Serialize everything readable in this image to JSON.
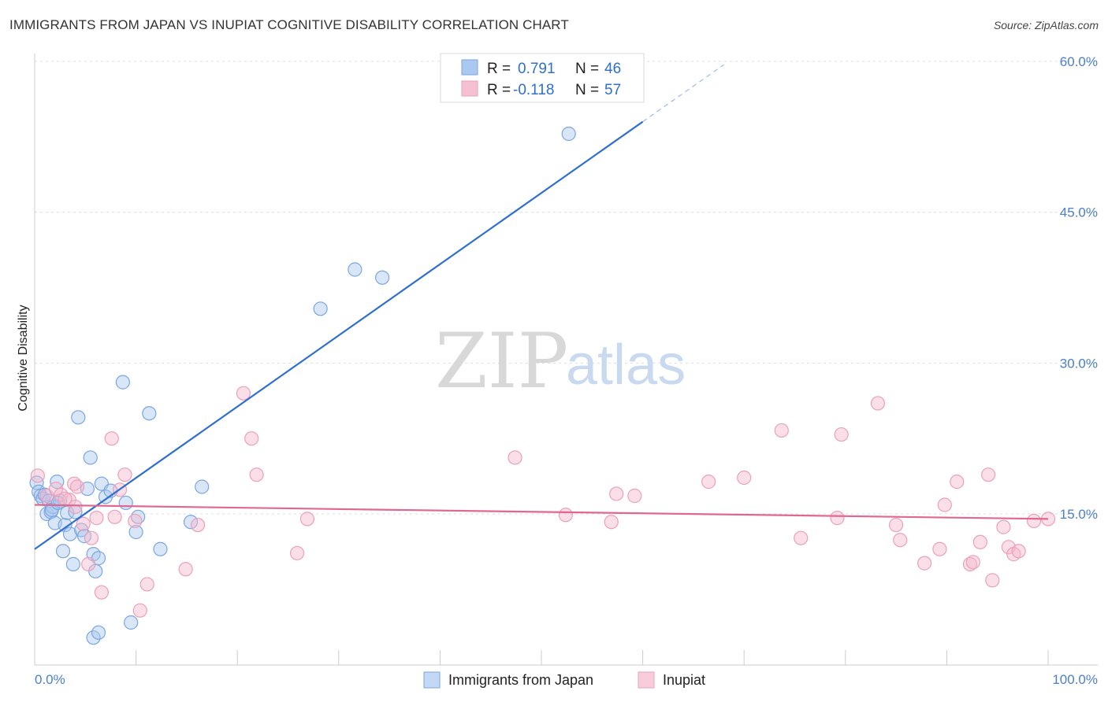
{
  "title": "IMMIGRANTS FROM JAPAN VS INUPIAT COGNITIVE DISABILITY CORRELATION CHART",
  "source": "Source: ZipAtlas.com",
  "watermark": {
    "zip": "ZIP",
    "atlas": "atlas"
  },
  "colors": {
    "blue": "#2e6fd0",
    "blue_fill": "#aac8f0",
    "pink": "#e06890",
    "pink_fill": "#f5b8cc"
  },
  "chart_data": {
    "type": "scatter",
    "title": "IMMIGRANTS FROM JAPAN VS INUPIAT COGNITIVE DISABILITY CORRELATION CHART",
    "xlabel": "",
    "ylabel": "Cognitive Disability",
    "xlim": [
      0,
      100
    ],
    "ylim": [
      0,
      63
    ],
    "x_tick_labels": {
      "left": "0.0%",
      "right": "100.0%"
    },
    "y_ticks": [
      {
        "value": 15,
        "label": "15.0%"
      },
      {
        "value": 30,
        "label": "30.0%"
      },
      {
        "value": 45,
        "label": "45.0%"
      },
      {
        "value": 60,
        "label": "60.0%"
      }
    ],
    "grid": true,
    "legend": {
      "placement": "top-center",
      "rows": [
        {
          "r_label": "R =",
          "r_value": "0.791",
          "n_label": "N =",
          "n_value": "46"
        },
        {
          "r_label": "R =",
          "r_value": "-0.118",
          "n_label": "N =",
          "n_value": "57"
        }
      ]
    },
    "series": [
      {
        "name": "Immigrants from Japan",
        "color": "#2e6fd0",
        "trend": {
          "x0": 0,
          "y0": 11.5,
          "x1": 60,
          "y1": 54.0,
          "dashed_to_x": 68
        },
        "points": [
          [
            0.2,
            18.1
          ],
          [
            0.4,
            17.2
          ],
          [
            0.6,
            16.8
          ],
          [
            0.8,
            16.5
          ],
          [
            1.0,
            16.9
          ],
          [
            1.2,
            15.0
          ],
          [
            1.4,
            16.3
          ],
          [
            1.6,
            15.2
          ],
          [
            1.8,
            15.7
          ],
          [
            2.0,
            14.1
          ],
          [
            2.2,
            18.2
          ],
          [
            2.5,
            16.3
          ],
          [
            2.8,
            11.3
          ],
          [
            3.0,
            13.9
          ],
          [
            3.2,
            15.1
          ],
          [
            3.5,
            13.0
          ],
          [
            3.8,
            10.0
          ],
          [
            4.0,
            15.2
          ],
          [
            4.3,
            24.6
          ],
          [
            4.6,
            13.4
          ],
          [
            4.9,
            12.8
          ],
          [
            5.2,
            17.5
          ],
          [
            5.5,
            20.6
          ],
          [
            5.8,
            11.0
          ],
          [
            6.0,
            9.3
          ],
          [
            6.3,
            10.6
          ],
          [
            6.6,
            18.0
          ],
          [
            7.0,
            16.7
          ],
          [
            7.5,
            17.3
          ],
          [
            8.7,
            28.1
          ],
          [
            9.0,
            16.1
          ],
          [
            9.5,
            4.2
          ],
          [
            10.0,
            13.2
          ],
          [
            10.2,
            14.7
          ],
          [
            11.3,
            25.0
          ],
          [
            12.4,
            11.5
          ],
          [
            15.4,
            14.2
          ],
          [
            16.5,
            17.7
          ],
          [
            28.2,
            35.4
          ],
          [
            31.6,
            39.3
          ],
          [
            34.3,
            38.5
          ],
          [
            52.7,
            52.8
          ],
          [
            5.8,
            2.7
          ],
          [
            6.3,
            3.2
          ],
          [
            1.7,
            15.4
          ],
          [
            2.3,
            16.1
          ]
        ]
      },
      {
        "name": "Inupiat",
        "color": "#e06890",
        "trend": {
          "x0": 0,
          "y0": 15.9,
          "x1": 100,
          "y1": 14.5
        },
        "points": [
          [
            0.3,
            18.8
          ],
          [
            1.2,
            16.8
          ],
          [
            2.1,
            17.5
          ],
          [
            2.6,
            16.9
          ],
          [
            3.4,
            16.4
          ],
          [
            3.9,
            18.0
          ],
          [
            4.2,
            17.7
          ],
          [
            4.8,
            14.0
          ],
          [
            5.3,
            10.0
          ],
          [
            5.6,
            12.6
          ],
          [
            6.1,
            14.6
          ],
          [
            6.6,
            7.2
          ],
          [
            7.6,
            22.5
          ],
          [
            7.9,
            14.7
          ],
          [
            8.4,
            17.4
          ],
          [
            8.9,
            18.9
          ],
          [
            9.9,
            14.3
          ],
          [
            10.4,
            5.4
          ],
          [
            11.1,
            8.0
          ],
          [
            14.9,
            9.5
          ],
          [
            16.1,
            13.9
          ],
          [
            20.6,
            27.0
          ],
          [
            21.4,
            22.5
          ],
          [
            21.9,
            18.9
          ],
          [
            25.9,
            11.1
          ],
          [
            26.9,
            14.5
          ],
          [
            47.4,
            20.6
          ],
          [
            52.4,
            14.9
          ],
          [
            56.9,
            14.2
          ],
          [
            57.4,
            17.0
          ],
          [
            59.2,
            16.8
          ],
          [
            66.5,
            18.2
          ],
          [
            70.0,
            18.6
          ],
          [
            73.7,
            23.3
          ],
          [
            75.6,
            12.6
          ],
          [
            79.2,
            14.6
          ],
          [
            79.6,
            22.9
          ],
          [
            83.2,
            26.0
          ],
          [
            85.0,
            13.9
          ],
          [
            85.4,
            12.4
          ],
          [
            87.8,
            10.1
          ],
          [
            89.3,
            11.5
          ],
          [
            89.8,
            15.9
          ],
          [
            91.0,
            18.2
          ],
          [
            92.3,
            10.0
          ],
          [
            92.6,
            10.2
          ],
          [
            93.3,
            12.2
          ],
          [
            94.1,
            18.9
          ],
          [
            94.5,
            8.4
          ],
          [
            95.6,
            13.7
          ],
          [
            96.1,
            11.7
          ],
          [
            96.6,
            11.0
          ],
          [
            97.1,
            11.3
          ],
          [
            98.6,
            14.3
          ],
          [
            100.0,
            14.5
          ],
          [
            4.0,
            15.7
          ],
          [
            3.0,
            16.5
          ]
        ]
      }
    ]
  },
  "bottom_legend": [
    "Immigrants from Japan",
    "Inupiat"
  ]
}
